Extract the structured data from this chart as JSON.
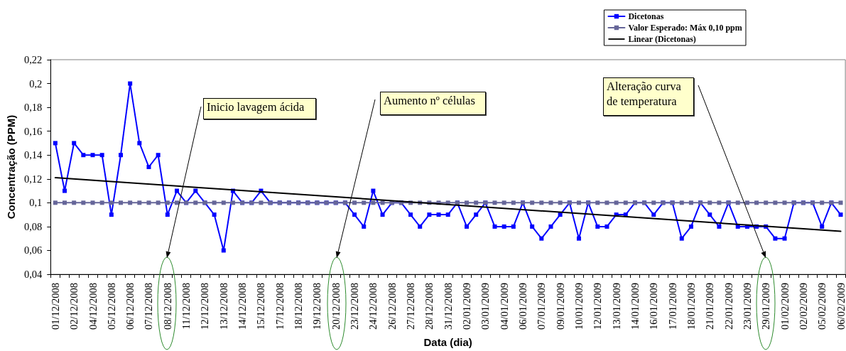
{
  "chart_data": {
    "type": "line",
    "xlabel": "Data (dia)",
    "ylabel": "Concentração (PPM)",
    "categories": [
      "01/12/2008",
      null,
      "02/12/2008",
      null,
      "04/12/2008",
      null,
      "05/12/2008",
      null,
      "06/12/2008",
      null,
      "07/12/2008",
      null,
      "08/12/2008",
      null,
      "11/12/2008",
      null,
      "12/12/2008",
      null,
      "13/12/2008",
      null,
      "14/12/2008",
      null,
      "15/12/2008",
      null,
      "17/12/2008",
      null,
      "18/12/2008",
      null,
      "19/12/2008",
      null,
      "20/12/2008",
      null,
      "23/12/2008",
      null,
      "24/12/2008",
      null,
      "26/12/2008",
      null,
      "27/12/2008",
      null,
      "28/12/2008",
      null,
      "31/12/2008",
      null,
      "02/01/2009",
      null,
      "03/01/2009",
      null,
      "04/01/2009",
      null,
      "06/01/2009",
      null,
      "07/01/2009",
      null,
      "09/01/2009",
      null,
      "10/01/2009",
      null,
      "12/01/2009",
      null,
      "13/01/2009",
      null,
      "14/01/2009",
      null,
      "16/01/2009",
      null,
      "17/01/2009",
      null,
      "18/01/2009",
      null,
      "21/01/2009",
      null,
      "22/01/2009",
      null,
      "23/01/2009",
      null,
      "29/01/2009",
      null,
      "01/02/2009",
      null,
      "02/02/2009",
      null,
      "05/02/2009",
      null,
      "06/02/2009"
    ],
    "series": [
      {
        "name": "Dicetonas",
        "color": "#0000ff",
        "values": [
          0.15,
          0.11,
          0.15,
          0.14,
          0.14,
          0.14,
          0.09,
          0.14,
          0.2,
          0.15,
          0.13,
          0.14,
          0.09,
          0.11,
          0.1,
          0.11,
          0.1,
          0.09,
          0.06,
          0.11,
          0.1,
          0.1,
          0.11,
          0.1,
          0.1,
          0.1,
          0.1,
          0.1,
          0.1,
          0.1,
          0.1,
          0.1,
          0.09,
          0.08,
          0.11,
          0.09,
          0.1,
          0.1,
          0.09,
          0.08,
          0.09,
          0.09,
          0.09,
          0.1,
          0.08,
          0.09,
          0.1,
          0.08,
          0.08,
          0.08,
          0.1,
          0.08,
          0.07,
          0.08,
          0.09,
          0.1,
          0.07,
          0.1,
          0.08,
          0.08,
          0.09,
          0.09,
          0.1,
          0.1,
          0.09,
          0.1,
          0.1,
          0.07,
          0.08,
          0.1,
          0.09,
          0.08,
          0.1,
          0.08,
          0.08,
          0.08,
          0.08,
          0.07,
          0.07,
          0.1,
          0.1,
          0.1,
          0.08,
          0.1,
          0.09
        ]
      },
      {
        "name": "Valor Esperado: Máx 0,10 ppm",
        "color": "#666699",
        "values": [
          0.1,
          0.1,
          0.1,
          0.1,
          0.1,
          0.1,
          0.1,
          0.1,
          0.1,
          0.1,
          0.1,
          0.1,
          0.1,
          0.1,
          0.1,
          0.1,
          0.1,
          0.1,
          0.1,
          0.1,
          0.1,
          0.1,
          0.1,
          0.1,
          0.1,
          0.1,
          0.1,
          0.1,
          0.1,
          0.1,
          0.1,
          0.1,
          0.1,
          0.1,
          0.1,
          0.1,
          0.1,
          0.1,
          0.1,
          0.1,
          0.1,
          0.1,
          0.1,
          0.1,
          0.1,
          0.1,
          0.1,
          0.1,
          0.1,
          0.1,
          0.1,
          0.1,
          0.1,
          0.1,
          0.1,
          0.1,
          0.1,
          0.1,
          0.1,
          0.1,
          0.1,
          0.1,
          0.1,
          0.1,
          0.1,
          0.1,
          0.1,
          0.1,
          0.1,
          0.1,
          0.1,
          0.1,
          0.1,
          0.1,
          0.1,
          0.1,
          0.1,
          0.1,
          0.1,
          0.1,
          0.1,
          0.1,
          0.1,
          0.1,
          0.1
        ]
      },
      {
        "name": "Linear (Dicetonas)",
        "type": "line",
        "color": "#000000",
        "marker": "none",
        "x": [
          "01/12/2008",
          "06/02/2009"
        ],
        "values": [
          0.121,
          0.076
        ]
      }
    ],
    "ylim": [
      0.04,
      0.22
    ],
    "yticks": [
      {
        "value": 0.04,
        "label": "0,04"
      },
      {
        "value": 0.06,
        "label": "0,06"
      },
      {
        "value": 0.08,
        "label": "0,08"
      },
      {
        "value": 0.1,
        "label": "0,1"
      },
      {
        "value": 0.12,
        "label": "0,12"
      },
      {
        "value": 0.14,
        "label": "0,14"
      },
      {
        "value": 0.16,
        "label": "0,16"
      },
      {
        "value": 0.18,
        "label": "0,18"
      },
      {
        "value": 0.2,
        "label": "0,2"
      },
      {
        "value": 0.22,
        "label": "0,22"
      }
    ],
    "marker": "square",
    "line_style": "solid",
    "legend": "top right",
    "annotations": [
      "Inicio lavagem ácida",
      "Aumento nº células",
      "Alteração curva de temperatura"
    ]
  }
}
